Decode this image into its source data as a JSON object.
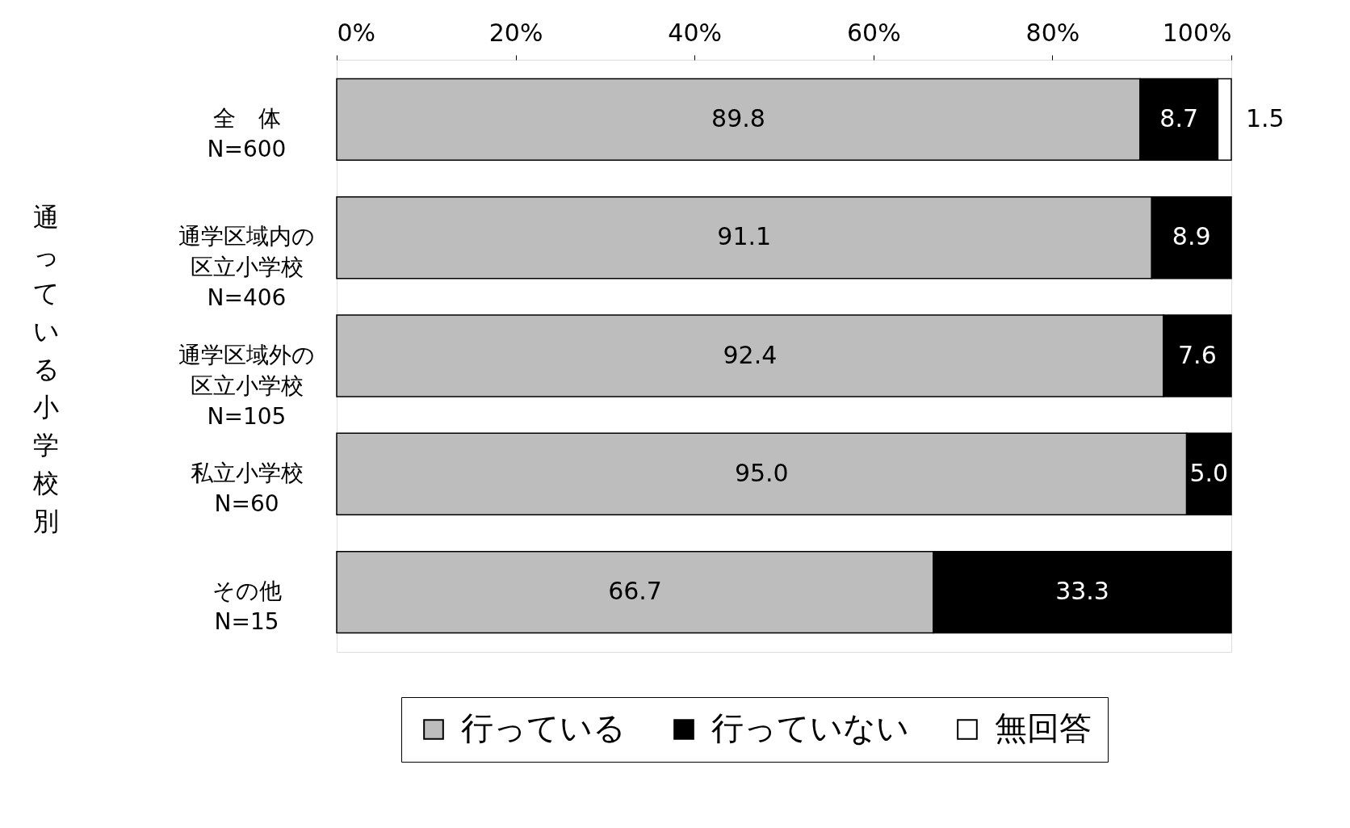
{
  "chart_data": {
    "type": "bar",
    "orientation": "horizontal",
    "stacked": true,
    "categories": [
      "全　体 N=600",
      "通学区域内の区立小学校 N=406",
      "通学区域外の区立小学校 N=105",
      "私立小学校 N=60",
      "その他 N=15"
    ],
    "series": [
      {
        "name": "行っている",
        "color": "#bdbdbd",
        "values": [
          89.8,
          91.1,
          92.4,
          95.0,
          66.7
        ],
        "value_labels": [
          "89.8",
          "91.1",
          "92.4",
          "95.0",
          "66.7"
        ]
      },
      {
        "name": "行っていない",
        "color": "#000000",
        "values": [
          8.7,
          8.9,
          7.6,
          5.0,
          33.3
        ],
        "value_labels": [
          "8.7",
          "8.9",
          "7.6",
          "5.0",
          "33.3"
        ]
      },
      {
        "name": "無回答",
        "color": "#ffffff",
        "values": [
          1.5,
          null,
          null,
          null,
          null
        ],
        "value_labels": [
          "1.5",
          null,
          null,
          null,
          null
        ]
      }
    ],
    "xlim": [
      0,
      100
    ],
    "xticks": [
      {
        "value": 0,
        "label": "0%"
      },
      {
        "value": 20,
        "label": "20%"
      },
      {
        "value": 40,
        "label": "40%"
      },
      {
        "value": 60,
        "label": "60%"
      },
      {
        "value": 80,
        "label": "80%"
      },
      {
        "value": 100,
        "label": "100%"
      }
    ],
    "grid": false,
    "legend": "bottom",
    "annotations": [
      "通っている小学校別"
    ]
  }
}
